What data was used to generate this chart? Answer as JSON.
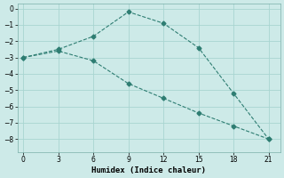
{
  "xlabel": "Humidex (Indice chaleur)",
  "background_color": "#cdeae8",
  "grid_color": "#a8d5d1",
  "line_color": "#2e7d72",
  "line1_x": [
    0,
    3,
    6,
    9,
    12,
    15,
    18,
    21
  ],
  "line1_y": [
    -3.0,
    -2.5,
    -1.7,
    -0.2,
    -0.9,
    -2.4,
    -5.2,
    -8.0
  ],
  "line2_x": [
    0,
    3,
    6,
    9,
    12,
    15,
    18,
    21
  ],
  "line2_y": [
    -3.0,
    -2.6,
    -3.2,
    -4.6,
    -5.5,
    -6.4,
    -7.2,
    -8.0
  ],
  "xlim": [
    -0.5,
    22
  ],
  "ylim": [
    -8.8,
    0.3
  ],
  "xticks": [
    0,
    3,
    6,
    9,
    12,
    15,
    18,
    21
  ],
  "yticks": [
    0,
    -1,
    -2,
    -3,
    -4,
    -5,
    -6,
    -7,
    -8
  ]
}
